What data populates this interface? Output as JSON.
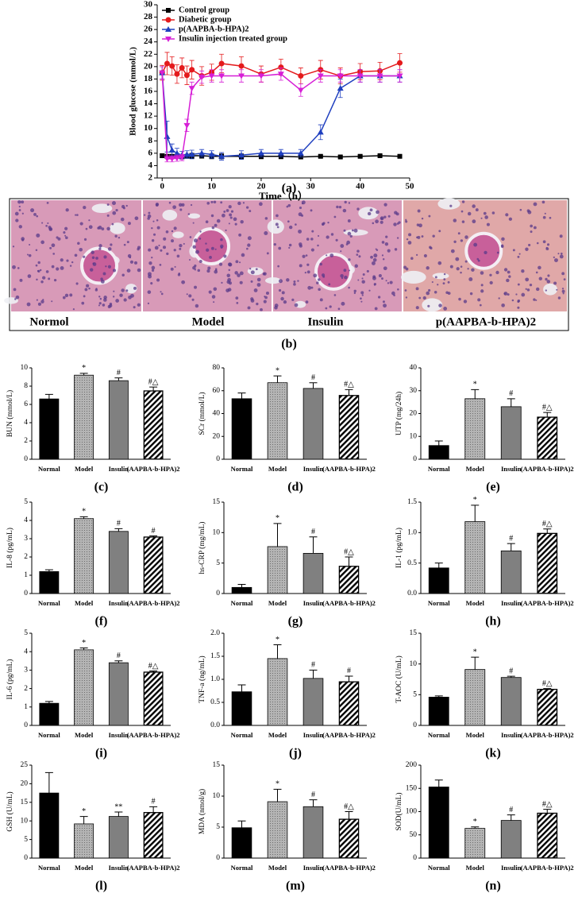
{
  "chart_data": [
    {
      "type": "line",
      "panel_label": "(a)",
      "xlabel": "Time（h）",
      "ylabel": "Blood glucose (mmol/L)",
      "x": [
        0,
        1,
        2,
        3,
        4,
        5,
        6,
        8,
        10,
        12,
        16,
        20,
        24,
        28,
        32,
        36,
        40,
        44,
        48
      ],
      "xlim": [
        -1,
        50
      ],
      "xticks": [
        0,
        10,
        20,
        30,
        40,
        50
      ],
      "ylim": [
        2,
        30
      ],
      "yticks": [
        2,
        4,
        6,
        8,
        10,
        12,
        14,
        16,
        18,
        20,
        22,
        24,
        26,
        28,
        30
      ],
      "series": [
        {
          "name": "Control group",
          "color": "#000000",
          "marker": "s",
          "values": [
            5.6,
            5.5,
            5.5,
            5.5,
            5.4,
            5.5,
            5.6,
            5.6,
            5.5,
            5.5,
            5.5,
            5.5,
            5.5,
            5.4,
            5.5,
            5.4,
            5.5,
            5.6,
            5.5
          ],
          "errors": [
            0.3,
            0.3,
            0.3,
            0.3,
            0.3,
            0.3,
            0.4,
            0.4,
            0.4,
            0.4,
            0.4,
            0.4,
            0.4,
            0.3,
            0.2,
            0.2,
            0.2,
            0.2,
            0.2
          ]
        },
        {
          "name": "Diabetic group",
          "color": "#e41a1c",
          "marker": "o",
          "values": [
            19,
            20.5,
            20.1,
            18.8,
            19.8,
            18.6,
            19.5,
            18.5,
            19.1,
            20.5,
            20.1,
            18.8,
            19.9,
            18.5,
            19.5,
            18.5,
            19.2,
            19.3,
            20.6
          ],
          "errors": [
            1.2,
            1.8,
            1.5,
            1.5,
            1.6,
            1.5,
            1.5,
            1.5,
            1.3,
            1.5,
            1.5,
            1.3,
            1.3,
            1.3,
            1.5,
            1.3,
            1.3,
            1.4,
            1.5
          ]
        },
        {
          "name": "p(AAPBA-b-HPA)2",
          "color": "#1f3fbf",
          "marker": "^",
          "values": [
            19,
            8.7,
            6.5,
            6,
            5.7,
            5.8,
            5.8,
            6,
            5.8,
            5.5,
            5.7,
            6,
            6,
            6,
            9.4,
            16.5,
            18.5,
            18.5,
            18.5
          ],
          "errors": [
            1,
            2.5,
            1,
            0.8,
            0.6,
            0.6,
            0.7,
            0.6,
            0.6,
            0.6,
            0.7,
            0.6,
            0.6,
            0.6,
            1.2,
            1.5,
            1,
            1,
            1
          ]
        },
        {
          "name": "Insulin injection treated group",
          "color": "#d61fd6",
          "marker": "v",
          "values": [
            19,
            5.1,
            5.1,
            5.2,
            5.3,
            10.5,
            16.5,
            18.3,
            18.5,
            18.5,
            18.5,
            18.5,
            18.8,
            16.2,
            18.5,
            18.5,
            18.5,
            18.5,
            18.5
          ],
          "errors": [
            1,
            0.5,
            0.5,
            0.5,
            0.5,
            1,
            1,
            1,
            1,
            1,
            1,
            1,
            1,
            1,
            1,
            1,
            1,
            1,
            1
          ]
        }
      ]
    },
    {
      "type": "bar",
      "panel_label": "(c)",
      "ylabel": "BUN (mmol/L)",
      "categories": [
        "Normal",
        "Model",
        "Insulin",
        "(AAPBA-b-HPA)2"
      ],
      "colors": [
        "#000000",
        "#b4b4b4",
        "#808080",
        "#ffffff"
      ],
      "ylim": [
        0,
        10
      ],
      "yticks": [
        0,
        2,
        4,
        6,
        8,
        10
      ],
      "values": [
        6.6,
        9.2,
        8.6,
        7.5
      ],
      "errors": [
        0.5,
        0.2,
        0.3,
        0.4
      ],
      "annotations": [
        null,
        "*",
        "#",
        "#△"
      ]
    },
    {
      "type": "bar",
      "panel_label": "(d)",
      "ylabel": "SCr (mmol/L)",
      "categories": [
        "Normal",
        "Model",
        "Insulin",
        "(AAPBA-b-HPA)2"
      ],
      "colors": [
        "#000000",
        "#b4b4b4",
        "#808080",
        "#ffffff"
      ],
      "ylim": [
        0,
        80
      ],
      "yticks": [
        0,
        20,
        40,
        60,
        80
      ],
      "values": [
        53,
        67,
        62,
        56
      ],
      "errors": [
        5,
        6,
        5,
        5
      ],
      "annotations": [
        null,
        "*",
        "#",
        "#△"
      ]
    },
    {
      "type": "bar",
      "panel_label": "(e)",
      "ylabel": "UTP (mg/24h)",
      "categories": [
        "Normal",
        "Model",
        "Insulin",
        "(AAPBA-b-HPA)2"
      ],
      "colors": [
        "#000000",
        "#b4b4b4",
        "#808080",
        "#ffffff"
      ],
      "ylim": [
        0,
        40
      ],
      "yticks": [
        0,
        10,
        20,
        30,
        40
      ],
      "values": [
        6,
        26.5,
        23,
        18.5
      ],
      "errors": [
        2,
        4,
        3.5,
        2
      ],
      "annotations": [
        null,
        "*",
        "#",
        "#△"
      ]
    },
    {
      "type": "bar",
      "panel_label": "(f)",
      "ylabel": "IL-8 (pg/mL)",
      "categories": [
        "Normal",
        "Model",
        "Insulin",
        "(AAPBA-b-HPA)2"
      ],
      "colors": [
        "#000000",
        "#b4b4b4",
        "#808080",
        "#ffffff"
      ],
      "ylim": [
        0,
        5
      ],
      "yticks": [
        0,
        1,
        2,
        3,
        4,
        5
      ],
      "values": [
        1.2,
        4.1,
        3.4,
        3.1
      ],
      "errors": [
        0.1,
        0.1,
        0.15,
        0.05
      ],
      "annotations": [
        null,
        "*",
        "#",
        "#"
      ]
    },
    {
      "type": "bar",
      "panel_label": "(g)",
      "ylabel": "hs-CRP (mg/mL)",
      "categories": [
        "Normal",
        "Model",
        "Insulin",
        "(AAPBA-b-HPA)2"
      ],
      "colors": [
        "#000000",
        "#b4b4b4",
        "#808080",
        "#ffffff"
      ],
      "ylim": [
        0,
        15
      ],
      "yticks": [
        0,
        5,
        10,
        15
      ],
      "values": [
        1,
        7.7,
        6.6,
        4.5
      ],
      "errors": [
        0.5,
        3.8,
        2.7,
        1.5
      ],
      "annotations": [
        null,
        "*",
        "#",
        "#△"
      ]
    },
    {
      "type": "bar",
      "panel_label": "(h)",
      "ylabel": "IL-1 (pg/mL)",
      "categories": [
        "Normal",
        "Model",
        "Insulin",
        "(AAPBA-b-HPA)2"
      ],
      "colors": [
        "#000000",
        "#b4b4b4",
        "#808080",
        "#ffffff"
      ],
      "ylim": [
        0,
        1.5
      ],
      "yticks": [
        {
          "value": 0,
          "label": "0.0"
        },
        0.5,
        {
          "value": 1,
          "label": "1.0"
        },
        1.5
      ],
      "values": [
        0.42,
        1.18,
        0.7,
        0.99
      ],
      "errors": [
        0.08,
        0.27,
        0.12,
        0.07
      ],
      "annotations": [
        null,
        "*",
        "#",
        "#△"
      ]
    },
    {
      "type": "bar",
      "panel_label": "(i)",
      "ylabel": "IL-6 (pg/mL)",
      "categories": [
        "Normal",
        "Model",
        "Insulin",
        "(AAPBA-b-HPA)2"
      ],
      "colors": [
        "#000000",
        "#b4b4b4",
        "#808080",
        "#ffffff"
      ],
      "ylim": [
        0,
        5
      ],
      "yticks": [
        0,
        1,
        2,
        3,
        4,
        5
      ],
      "values": [
        1.2,
        4.1,
        3.4,
        2.9
      ],
      "errors": [
        0.1,
        0.1,
        0.1,
        0.05
      ],
      "annotations": [
        null,
        "*",
        "#",
        "#△"
      ]
    },
    {
      "type": "bar",
      "panel_label": "(j)",
      "ylabel": "TNF-a (ng/mL)",
      "categories": [
        "Normal",
        "Model",
        "Insulin",
        "(AAPBA-b-HPA)2"
      ],
      "colors": [
        "#000000",
        "#b4b4b4",
        "#808080",
        "#ffffff"
      ],
      "ylim": [
        0,
        2
      ],
      "yticks": [
        {
          "value": 0,
          "label": "0.0"
        },
        0.5,
        {
          "value": 1,
          "label": "1.0"
        },
        1.5,
        {
          "value": 2,
          "label": "2.0"
        }
      ],
      "values": [
        0.73,
        1.45,
        1.02,
        0.95
      ],
      "errors": [
        0.15,
        0.3,
        0.18,
        0.12
      ],
      "annotations": [
        null,
        "*",
        "#",
        "#"
      ]
    },
    {
      "type": "bar",
      "panel_label": "(k)",
      "ylabel": "T-AOC (U/mL)",
      "categories": [
        "Normal",
        "Model",
        "Insulin",
        "(AAPBA-b-HPA)2"
      ],
      "colors": [
        "#000000",
        "#b4b4b4",
        "#808080",
        "#ffffff"
      ],
      "ylim": [
        0,
        15
      ],
      "yticks": [
        0,
        5,
        10,
        15
      ],
      "values": [
        4.6,
        9.1,
        7.8,
        5.9
      ],
      "errors": [
        0.2,
        2,
        0.2,
        0.1
      ],
      "annotations": [
        null,
        "*",
        "#",
        "#△"
      ]
    },
    {
      "type": "bar",
      "panel_label": "(l)",
      "ylabel": "GSH (U/mL)",
      "categories": [
        "Normal",
        "Model",
        "Insulin",
        "(AAPBA-b-HPA)2"
      ],
      "colors": [
        "#000000",
        "#b4b4b4",
        "#808080",
        "#ffffff"
      ],
      "ylim": [
        0,
        25
      ],
      "yticks": [
        0,
        5,
        10,
        15,
        20,
        25
      ],
      "values": [
        17.5,
        9.2,
        11.2,
        12.3
      ],
      "errors": [
        5.5,
        2,
        1.2,
        1.5
      ],
      "annotations": [
        null,
        "*",
        "**",
        "#"
      ]
    },
    {
      "type": "bar",
      "panel_label": "(m)",
      "ylabel": "MDA (nmol/g)",
      "categories": [
        "Normal",
        "Model",
        "Insulin",
        "(AAPBA-b-HPA)2"
      ],
      "colors": [
        "#000000",
        "#b4b4b4",
        "#808080",
        "#ffffff"
      ],
      "ylim": [
        0,
        15
      ],
      "yticks": [
        0,
        5,
        10,
        15
      ],
      "values": [
        4.9,
        9.1,
        8.3,
        6.3
      ],
      "errors": [
        1.1,
        2,
        1.1,
        1.2
      ],
      "annotations": [
        null,
        "*",
        "#",
        "#△"
      ]
    },
    {
      "type": "bar",
      "panel_label": "(n)",
      "ylabel": "SOD(U/mL)",
      "categories": [
        "Normal",
        "Model",
        "Insulin",
        "(AAPBA-b-HPA)2"
      ],
      "colors": [
        "#000000",
        "#b4b4b4",
        "#808080",
        "#ffffff"
      ],
      "ylim": [
        0,
        200
      ],
      "yticks": [
        0,
        50,
        100,
        150,
        200
      ],
      "values": [
        153,
        64,
        81,
        97
      ],
      "errors": [
        15,
        3,
        12,
        8
      ],
      "annotations": [
        null,
        "*",
        "#",
        "#△"
      ]
    }
  ],
  "histology": {
    "panel_label": "(b)",
    "labels": [
      "Normol",
      "Model",
      "Insulin",
      "p(AAPBA-b-HPA)2"
    ]
  }
}
